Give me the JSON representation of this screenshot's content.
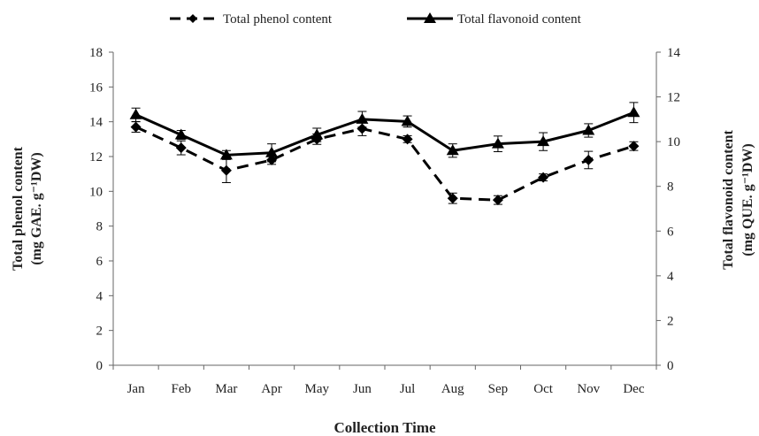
{
  "chart_data": {
    "type": "line",
    "categories": [
      "Jan",
      "Feb",
      "Mar",
      "Apr",
      "May",
      "Jun",
      "Jul",
      "Aug",
      "Sep",
      "Oct",
      "Nov",
      "Dec"
    ],
    "xlabel": "Collection Time",
    "ylabel": "Total phenol content",
    "ylabel_unit": "(mg GAE. g⁻¹DW)",
    "y2label": "Total flavonoid content",
    "y2label_unit": "(mg QUE. g⁻¹DW)",
    "ylim": [
      0,
      18
    ],
    "y_ticks": [
      0,
      2,
      4,
      6,
      8,
      10,
      12,
      14,
      16,
      18
    ],
    "y2lim": [
      0,
      14
    ],
    "y2_ticks": [
      0,
      2,
      4,
      6,
      8,
      10,
      12,
      14
    ],
    "legend_position": "top",
    "grid": false,
    "series": [
      {
        "name": "Total phenol content",
        "axis": "left",
        "style": "dashed",
        "marker": "diamond",
        "color": "#000000",
        "values": [
          13.7,
          12.5,
          11.2,
          11.8,
          13.0,
          13.6,
          13.0,
          9.6,
          9.5,
          10.8,
          11.8,
          12.6
        ],
        "errors": [
          0.3,
          0.4,
          0.7,
          0.25,
          0.3,
          0.4,
          0.2,
          0.3,
          0.25,
          0.2,
          0.5,
          0.25
        ]
      },
      {
        "name": "Total flavonoid content",
        "axis": "right",
        "style": "solid",
        "marker": "triangle",
        "color": "#000000",
        "values": [
          11.2,
          10.3,
          9.4,
          9.5,
          10.3,
          11.0,
          10.9,
          9.6,
          9.9,
          10.0,
          10.5,
          11.3
        ],
        "errors": [
          0.3,
          0.2,
          0.2,
          0.4,
          0.3,
          0.35,
          0.25,
          0.3,
          0.35,
          0.4,
          0.3,
          0.45
        ]
      }
    ]
  }
}
